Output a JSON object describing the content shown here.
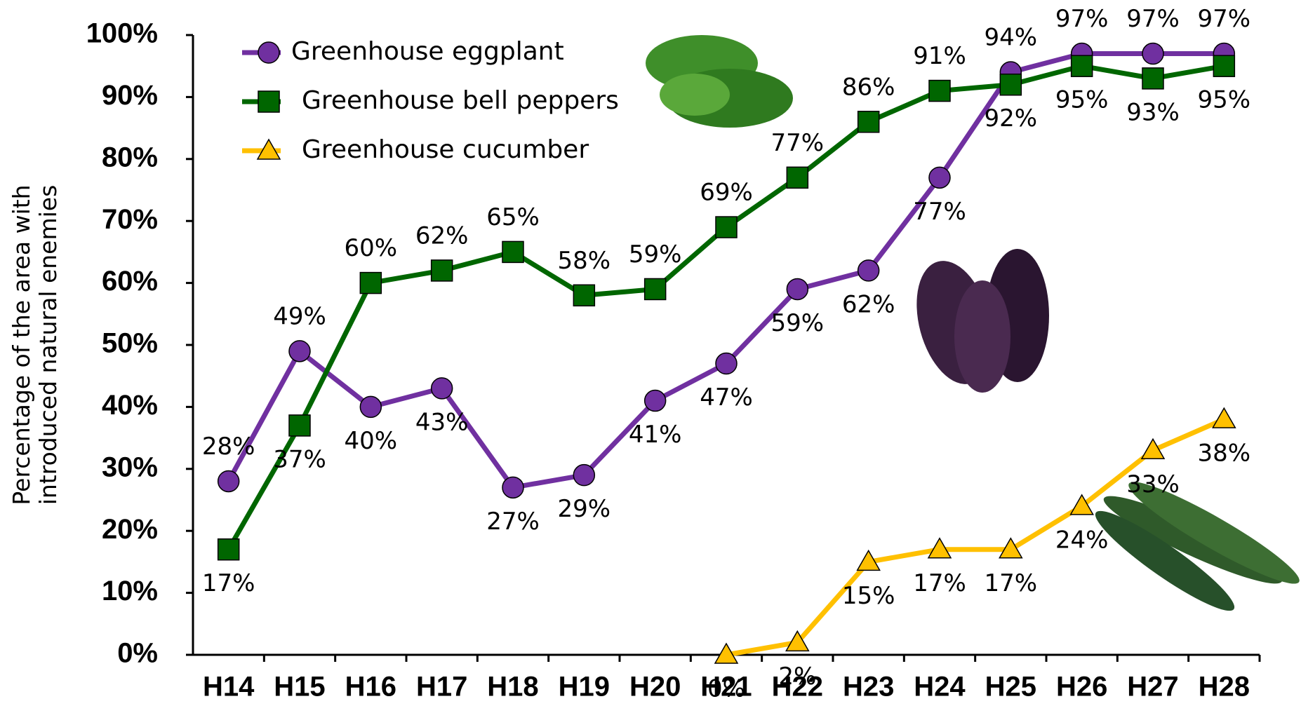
{
  "chart_data": {
    "type": "line",
    "ylabel": [
      "Percentage of the area with",
      "introduced natural enemies"
    ],
    "categories": [
      "H14",
      "H15",
      "H16",
      "H17",
      "H18",
      "H19",
      "H20",
      "H21",
      "H22",
      "H23",
      "H24",
      "H25",
      "H26",
      "H27",
      "H28"
    ],
    "series": [
      {
        "name": "Greenhouse eggplant",
        "color": "#7030a0",
        "marker": "circle",
        "values": [
          28,
          49,
          40,
          43,
          27,
          29,
          41,
          47,
          59,
          62,
          77,
          94,
          97,
          97,
          97
        ],
        "value_labels": [
          "28%",
          "49%",
          "40%",
          "43%",
          "27%",
          "29%",
          "41%",
          "47%",
          "59%",
          "62%",
          "77%",
          "94%",
          "97%",
          "97%",
          "97%"
        ]
      },
      {
        "name": "Greenhouse bell peppers",
        "color": "#006600",
        "marker": "square",
        "values": [
          17,
          37,
          60,
          62,
          65,
          58,
          59,
          69,
          77,
          86,
          91,
          92,
          95,
          93,
          95
        ],
        "value_labels": [
          "17%",
          "37%",
          "60%",
          "62%",
          "65%",
          "58%",
          "59%",
          "69%",
          "77%",
          "86%",
          "91%",
          "92%",
          "95%",
          "93%",
          "95%"
        ]
      },
      {
        "name": "Greenhouse cucumber",
        "color": "#ffc000",
        "marker": "triangle",
        "values": [
          null,
          null,
          null,
          null,
          null,
          null,
          null,
          0,
          2,
          15,
          17,
          17,
          24,
          33,
          38
        ],
        "value_labels": [
          null,
          null,
          null,
          null,
          null,
          null,
          null,
          "0%",
          "2%",
          "15%",
          "17%",
          "17%",
          "24%",
          "33%",
          "38%"
        ]
      }
    ],
    "ylim": [
      0,
      100
    ],
    "yticks": [
      {
        "value": 0,
        "label": "0%"
      },
      {
        "value": 10,
        "label": "10%"
      },
      {
        "value": 20,
        "label": "20%"
      },
      {
        "value": 30,
        "label": "30%"
      },
      {
        "value": 40,
        "label": "40%"
      },
      {
        "value": 50,
        "label": "50%"
      },
      {
        "value": 60,
        "label": "60%"
      },
      {
        "value": 70,
        "label": "70%"
      },
      {
        "value": 80,
        "label": "80%"
      },
      {
        "value": 90,
        "label": "90%"
      },
      {
        "value": 100,
        "label": "100%"
      }
    ],
    "legend": "top-left"
  }
}
